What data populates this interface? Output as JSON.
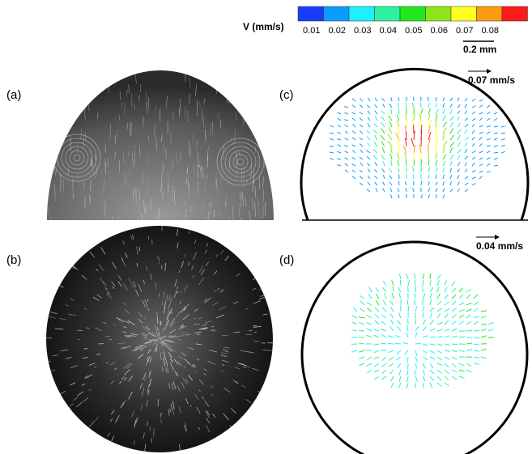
{
  "colorbar": {
    "label": "V (mm/s)",
    "colors": [
      "#1a3cff",
      "#0a9cff",
      "#1ef0ff",
      "#2cf2a0",
      "#22e81e",
      "#8ee61a",
      "#ffff22",
      "#ff9a10",
      "#ff1a1a"
    ],
    "tick_labels": [
      "0.01",
      "0.02",
      "0.03",
      "0.04",
      "0.05",
      "0.06",
      "0.07",
      "0.08"
    ]
  },
  "scale_bar": "0.2 mm",
  "panels": [
    {
      "label": "(a)"
    },
    {
      "label": "(b)"
    },
    {
      "label": "(c)",
      "reference_vector": "0.07 mm/s"
    },
    {
      "label": "(d)",
      "reference_vector": "0.04 mm/s"
    }
  ]
}
